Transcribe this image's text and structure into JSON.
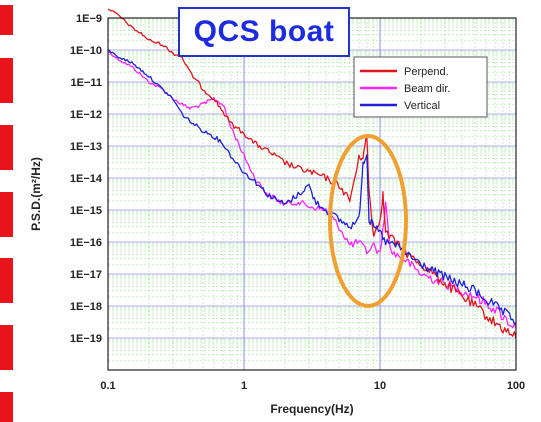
{
  "title": "QCS boat",
  "colors": {
    "perpend": "#e0141c",
    "beam": "#ff22ff",
    "vertical": "#1f1fd8",
    "highlight": "#f0a030",
    "grid_minor": "#a8e8a0",
    "grid_major": "#8f8fe0",
    "title": "#1d2be0"
  },
  "chart_data": {
    "type": "line",
    "x_scale": "log",
    "y_scale": "log",
    "xlabel": "Frequency(Hz)",
    "ylabel": "P.S.D.(m²/Hz)",
    "xlim": [
      0.1,
      100
    ],
    "ylim": [
      1e-20,
      1e-09
    ],
    "xticks": [
      {
        "value": 0.1,
        "label": "0.1"
      },
      {
        "value": 1,
        "label": "1"
      },
      {
        "value": 10,
        "label": "10"
      },
      {
        "value": 100,
        "label": "100"
      }
    ],
    "yticks": [
      {
        "value": 1e-09,
        "label": "1E−9"
      },
      {
        "value": 1e-10,
        "label": "1E−10"
      },
      {
        "value": 1e-11,
        "label": "1E−11"
      },
      {
        "value": 1e-12,
        "label": "1E−12"
      },
      {
        "value": 1e-13,
        "label": "1E−13"
      },
      {
        "value": 1e-14,
        "label": "1E−14"
      },
      {
        "value": 1e-15,
        "label": "1E−15"
      },
      {
        "value": 1e-16,
        "label": "1E−16"
      },
      {
        "value": 1e-17,
        "label": "1E−17"
      },
      {
        "value": 1e-18,
        "label": "1E−18"
      },
      {
        "value": 1e-19,
        "label": "1E−19"
      }
    ],
    "grid": true,
    "legend": "top-right",
    "series": [
      {
        "name": "Perpend.",
        "color": "#e0141c",
        "points": [
          [
            0.1,
            2e-09
          ],
          [
            0.12,
            1.2e-09
          ],
          [
            0.15,
            5e-10
          ],
          [
            0.18,
            3e-10
          ],
          [
            0.2,
            2e-10
          ],
          [
            0.25,
            1.5e-10
          ],
          [
            0.3,
            8e-11
          ],
          [
            0.35,
            6e-11
          ],
          [
            0.4,
            2e-11
          ],
          [
            0.5,
            6e-12
          ],
          [
            0.6,
            3e-12
          ],
          [
            0.7,
            1.2e-12
          ],
          [
            0.8,
            5e-13
          ],
          [
            1.0,
            2.5e-13
          ],
          [
            1.2,
            1.2e-13
          ],
          [
            1.5,
            7e-14
          ],
          [
            2.0,
            3e-14
          ],
          [
            2.5,
            2e-14
          ],
          [
            3.0,
            1.6e-14
          ],
          [
            4.0,
            1e-14
          ],
          [
            5.0,
            6e-15
          ],
          [
            6.0,
            2e-15
          ],
          [
            7.0,
            4e-14
          ],
          [
            7.5,
            5e-14
          ],
          [
            8.0,
            2e-13
          ],
          [
            8.3,
            4e-15
          ],
          [
            9.0,
            1.5e-16
          ],
          [
            10.0,
            5e-16
          ],
          [
            10.5,
            3e-15
          ],
          [
            11.0,
            2e-16
          ],
          [
            13.0,
            1e-16
          ],
          [
            15.0,
            5e-17
          ],
          [
            20.0,
            2e-17
          ],
          [
            25.0,
            1e-17
          ],
          [
            30.0,
            5e-18
          ],
          [
            40.0,
            2e-18
          ],
          [
            50.0,
            1e-18
          ],
          [
            70.0,
            3e-19
          ],
          [
            100.0,
            1e-19
          ]
        ]
      },
      {
        "name": "Beam dir.",
        "color": "#ff22ff",
        "points": [
          [
            0.1,
            9e-11
          ],
          [
            0.12,
            5e-11
          ],
          [
            0.15,
            3e-11
          ],
          [
            0.2,
            1e-11
          ],
          [
            0.25,
            6e-12
          ],
          [
            0.3,
            3e-12
          ],
          [
            0.35,
            2e-12
          ],
          [
            0.4,
            1.5e-12
          ],
          [
            0.5,
            2e-12
          ],
          [
            0.6,
            3e-12
          ],
          [
            0.7,
            2e-12
          ],
          [
            0.8,
            4e-13
          ],
          [
            1.0,
            5e-14
          ],
          [
            1.2,
            1e-14
          ],
          [
            1.5,
            3e-15
          ],
          [
            2.0,
            1.5e-15
          ],
          [
            2.5,
            1.8e-15
          ],
          [
            3.0,
            1.3e-15
          ],
          [
            4.0,
            1e-15
          ],
          [
            5.0,
            3e-16
          ],
          [
            6.0,
            8e-17
          ],
          [
            7.0,
            1e-16
          ],
          [
            8.0,
            5e-17
          ],
          [
            9.0,
            8e-17
          ],
          [
            10.0,
            4e-17
          ],
          [
            11.0,
            1.5e-15
          ],
          [
            12.0,
            5e-17
          ],
          [
            15.0,
            3e-17
          ],
          [
            20.0,
            1e-17
          ],
          [
            30.0,
            5e-18
          ],
          [
            50.0,
            2e-18
          ],
          [
            70.0,
            8e-19
          ],
          [
            100.0,
            2e-19
          ]
        ]
      },
      {
        "name": "Vertical",
        "color": "#1f1fd8",
        "points": [
          [
            0.1,
            1e-10
          ],
          [
            0.12,
            6e-11
          ],
          [
            0.15,
            4e-11
          ],
          [
            0.2,
            1.5e-11
          ],
          [
            0.25,
            6e-12
          ],
          [
            0.3,
            3e-12
          ],
          [
            0.35,
            1e-12
          ],
          [
            0.4,
            6e-13
          ],
          [
            0.5,
            3e-13
          ],
          [
            0.6,
            2e-13
          ],
          [
            0.7,
            1.2e-13
          ],
          [
            0.8,
            5e-14
          ],
          [
            1.0,
            1.5e-14
          ],
          [
            1.2,
            8e-15
          ],
          [
            1.5,
            3e-15
          ],
          [
            2.0,
            1.5e-15
          ],
          [
            2.5,
            3e-15
          ],
          [
            3.0,
            6e-15
          ],
          [
            3.3,
            2e-15
          ],
          [
            4.0,
            1e-15
          ],
          [
            5.0,
            5e-16
          ],
          [
            6.0,
            3e-16
          ],
          [
            7.0,
            5e-16
          ],
          [
            7.5,
            3e-14
          ],
          [
            8.0,
            6e-14
          ],
          [
            8.3,
            5e-16
          ],
          [
            9.0,
            3e-16
          ],
          [
            10.0,
            2e-16
          ],
          [
            11.0,
            1e-16
          ],
          [
            13.0,
            8e-17
          ],
          [
            15.0,
            5e-17
          ],
          [
            20.0,
            2e-17
          ],
          [
            30.0,
            8e-18
          ],
          [
            50.0,
            3e-18
          ],
          [
            70.0,
            1e-18
          ],
          [
            100.0,
            3e-19
          ]
        ]
      }
    ],
    "highlight_region": {
      "x_center": 7.0,
      "y_center": 1e-15,
      "shape": "ellipse"
    }
  }
}
